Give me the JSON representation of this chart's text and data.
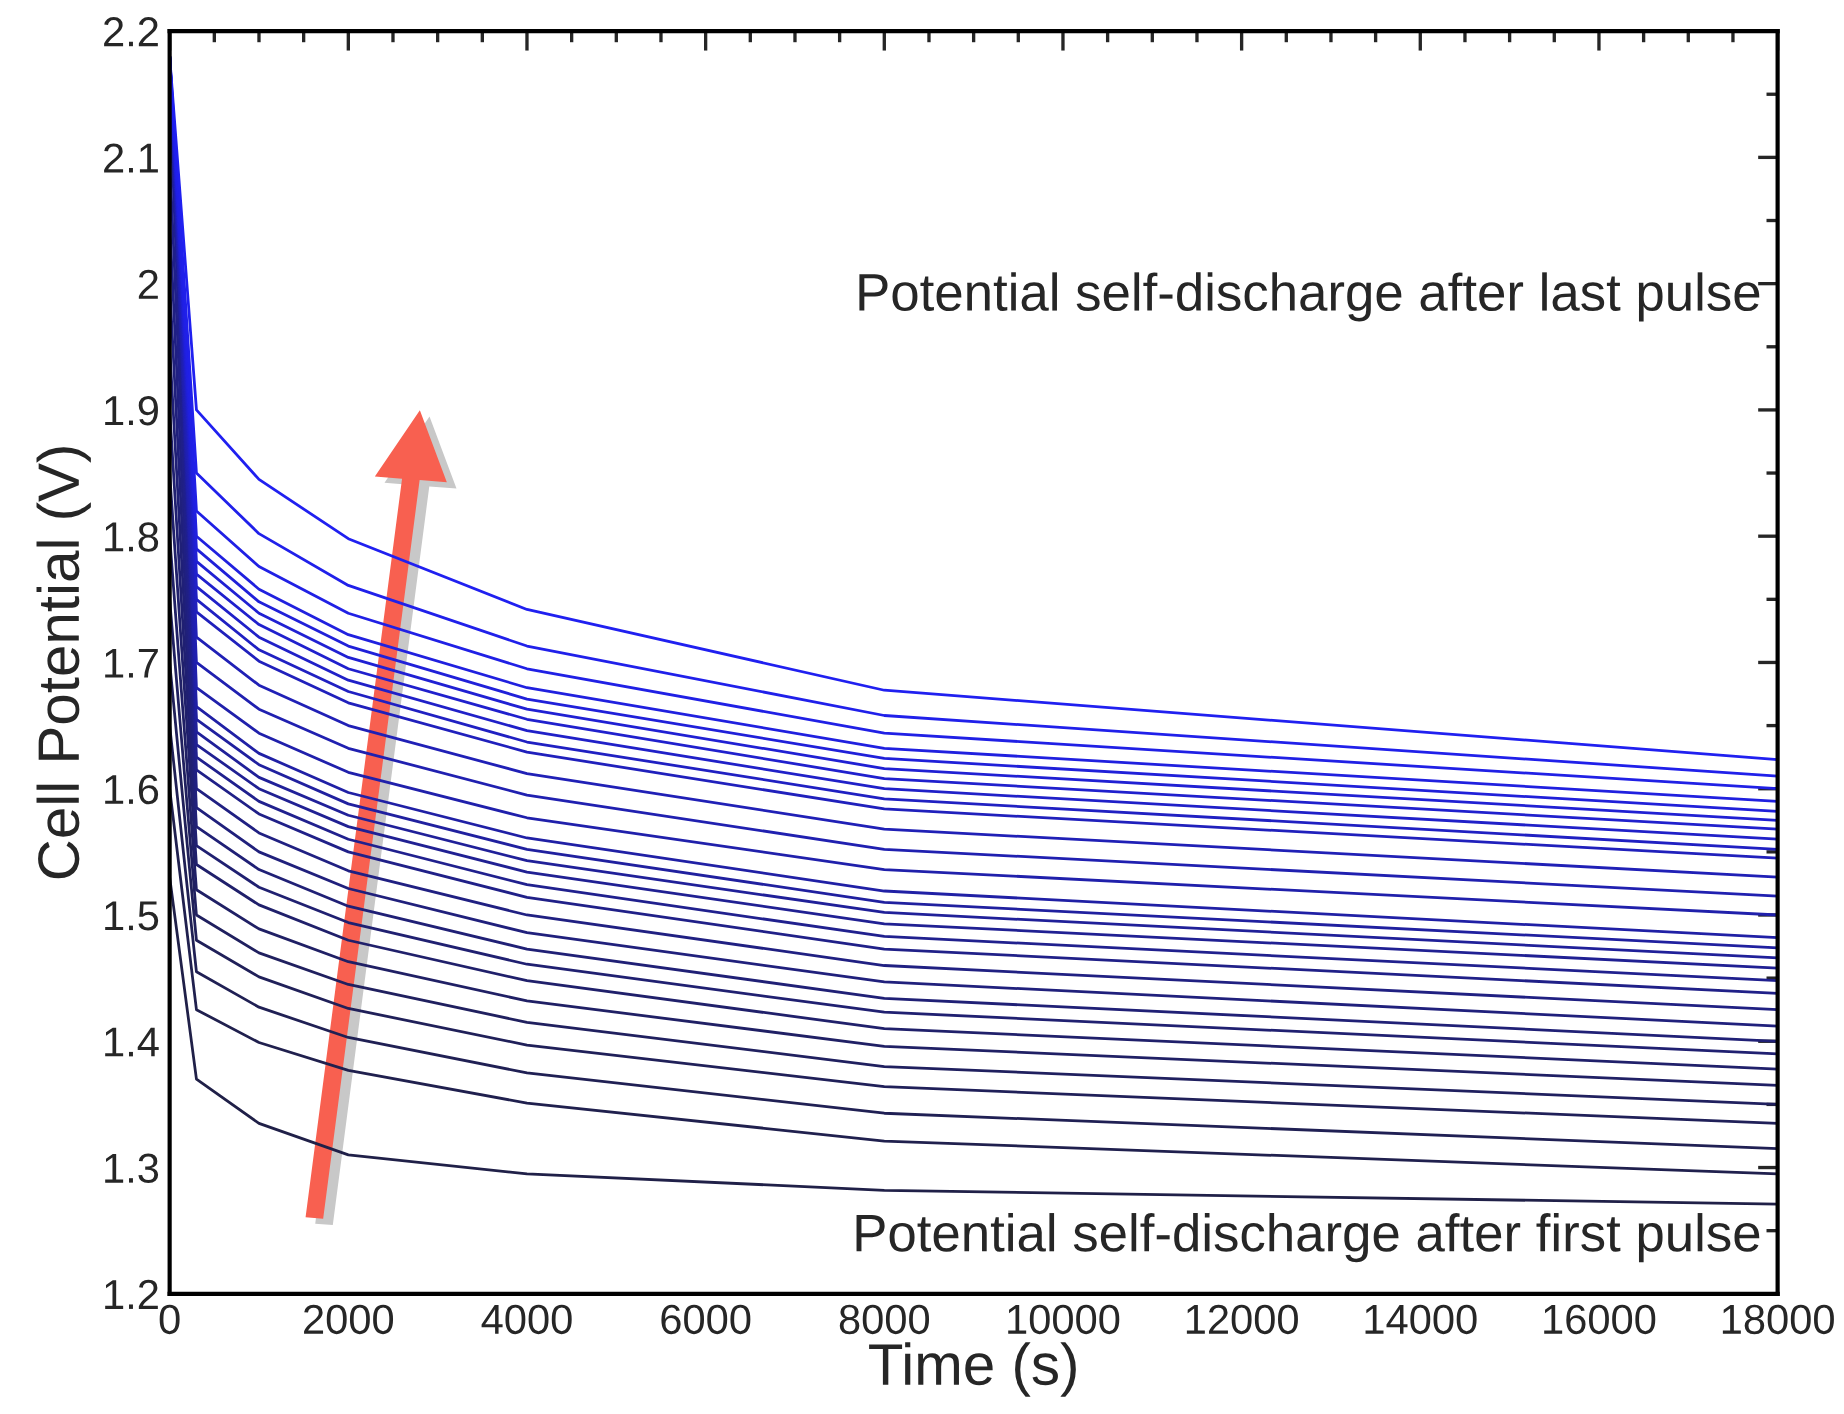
{
  "chart_data": {
    "type": "line",
    "xlabel": "Time (s)",
    "ylabel": "Cell Potential (V)",
    "x": [
      0,
      300,
      1000,
      2000,
      4000,
      8000,
      18000
    ],
    "xlim": [
      0,
      18000
    ],
    "xticks": [
      0,
      2000,
      4000,
      6000,
      8000,
      10000,
      12000,
      14000,
      16000,
      18000
    ],
    "ylim": [
      1.2,
      2.2
    ],
    "yticks": [
      1.2,
      1.3,
      1.4,
      1.5,
      1.6,
      1.7,
      1.8,
      1.9,
      {
        "value": 2,
        "label": "2"
      },
      2.1,
      2.2
    ],
    "grid": false,
    "marker": "none",
    "line_style": "solid",
    "annotations": [
      "Potential self-discharge after last pulse",
      "Potential self-discharge after first pulse"
    ],
    "series": [
      {
        "color": "#202048",
        "values": [
          1.53,
          1.37,
          1.335,
          1.31,
          1.295,
          1.282,
          1.271
        ]
      },
      {
        "color": "#20204e",
        "values": [
          1.6,
          1.425,
          1.399,
          1.377,
          1.351,
          1.321,
          1.295
        ]
      },
      {
        "color": "#202054",
        "values": [
          1.65,
          1.455,
          1.427,
          1.403,
          1.375,
          1.343,
          1.315
        ]
      },
      {
        "color": "#202059",
        "values": [
          1.7,
          1.48,
          1.451,
          1.426,
          1.397,
          1.364,
          1.335
        ]
      },
      {
        "color": "#20205f",
        "values": [
          1.75,
          1.5,
          1.47,
          1.445,
          1.415,
          1.38,
          1.35
        ]
      },
      {
        "color": "#202065",
        "values": [
          1.8,
          1.52,
          1.489,
          1.463,
          1.432,
          1.396,
          1.365
        ]
      },
      {
        "color": "#20206b",
        "values": [
          1.85,
          1.54,
          1.508,
          1.48,
          1.448,
          1.41,
          1.378
        ]
      },
      {
        "color": "#202071",
        "values": [
          1.9,
          1.555,
          1.522,
          1.494,
          1.461,
          1.423,
          1.39
        ]
      },
      {
        "color": "#202076",
        "values": [
          1.95,
          1.57,
          1.536,
          1.507,
          1.473,
          1.434,
          1.4
        ]
      },
      {
        "color": "#20207c",
        "values": [
          2.0,
          1.585,
          1.55,
          1.521,
          1.486,
          1.447,
          1.412
        ]
      },
      {
        "color": "#202082",
        "values": [
          2.05,
          1.6,
          1.565,
          1.535,
          1.5,
          1.46,
          1.425
        ]
      },
      {
        "color": "#202088",
        "values": [
          2.1,
          1.615,
          1.58,
          1.55,
          1.514,
          1.473,
          1.438
        ]
      },
      {
        "color": "#20208e",
        "values": [
          2.15,
          1.625,
          1.59,
          1.56,
          1.524,
          1.483,
          1.448
        ]
      },
      {
        "color": "#202093",
        "values": [
          2.18,
          1.635,
          1.6,
          1.57,
          1.534,
          1.493,
          1.458
        ]
      },
      {
        "color": "#202099",
        "values": [
          2.18,
          1.645,
          1.609,
          1.579,
          1.543,
          1.502,
          1.466
        ]
      },
      {
        "color": "#20209f",
        "values": [
          2.18,
          1.655,
          1.619,
          1.588,
          1.552,
          1.51,
          1.474
        ]
      },
      {
        "color": "#2020a5",
        "values": [
          2.18,
          1.665,
          1.628,
          1.597,
          1.561,
          1.519,
          1.482
        ]
      },
      {
        "color": "#2020ab",
        "values": [
          2.18,
          1.68,
          1.644,
          1.613,
          1.577,
          1.536,
          1.5
        ]
      },
      {
        "color": "#2020b0",
        "values": [
          2.18,
          1.7,
          1.663,
          1.632,
          1.595,
          1.552,
          1.515
        ]
      },
      {
        "color": "#2020b6",
        "values": [
          2.18,
          1.72,
          1.682,
          1.65,
          1.612,
          1.568,
          1.53
        ]
      },
      {
        "color": "#2020bc",
        "values": [
          2.18,
          1.74,
          1.701,
          1.668,
          1.629,
          1.584,
          1.545
        ]
      },
      {
        "color": "#2020c2",
        "values": [
          2.18,
          1.75,
          1.71,
          1.677,
          1.637,
          1.592,
          1.552
        ]
      },
      {
        "color": "#2020c8",
        "values": [
          2.18,
          1.76,
          1.72,
          1.686,
          1.646,
          1.6,
          1.56
        ]
      },
      {
        "color": "#2020cd",
        "values": [
          2.18,
          1.77,
          1.73,
          1.695,
          1.655,
          1.608,
          1.568
        ]
      },
      {
        "color": "#2020d3",
        "values": [
          2.18,
          1.78,
          1.739,
          1.704,
          1.663,
          1.616,
          1.575
        ]
      },
      {
        "color": "#2020d9",
        "values": [
          2.18,
          1.79,
          1.748,
          1.713,
          1.671,
          1.624,
          1.582
        ]
      },
      {
        "color": "#2020df",
        "values": [
          2.18,
          1.8,
          1.758,
          1.722,
          1.68,
          1.632,
          1.59
        ]
      },
      {
        "color": "#2020e5",
        "values": [
          2.18,
          1.82,
          1.776,
          1.739,
          1.695,
          1.644,
          1.6
        ]
      },
      {
        "color": "#2020ea",
        "values": [
          2.18,
          1.85,
          1.802,
          1.761,
          1.713,
          1.658,
          1.61
        ]
      },
      {
        "color": "#2020f0",
        "values": [
          2.18,
          1.9,
          1.845,
          1.798,
          1.742,
          1.678,
          1.623
        ]
      }
    ]
  }
}
